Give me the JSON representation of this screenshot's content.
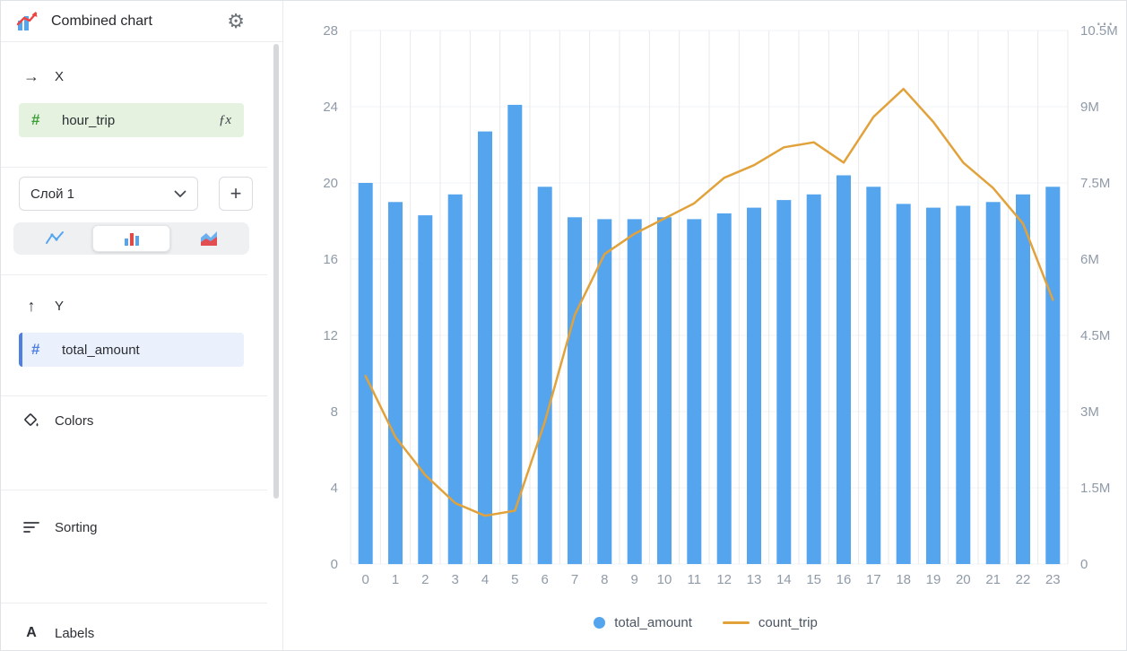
{
  "header": {
    "title": "Combined chart"
  },
  "icons": {
    "gear": "⚙",
    "x_arrow": "→",
    "y_arrow": "↑",
    "plus": "+",
    "menu_dots": "⋯",
    "labels": "A",
    "hash": "#",
    "formula": "ƒx"
  },
  "sidebar": {
    "x_section": {
      "label": "X",
      "field": "hour_trip"
    },
    "layer": {
      "selected": "Слой 1"
    },
    "y_section": {
      "label": "Y",
      "field": "total_amount"
    },
    "colors_label": "Colors",
    "sorting_label": "Sorting",
    "labels_label": "Labels"
  },
  "chart_data": {
    "type": "combined",
    "categories": [
      "0",
      "1",
      "2",
      "3",
      "4",
      "5",
      "6",
      "7",
      "8",
      "9",
      "10",
      "11",
      "12",
      "13",
      "14",
      "15",
      "16",
      "17",
      "18",
      "19",
      "20",
      "21",
      "22",
      "23"
    ],
    "series": [
      {
        "name": "total_amount",
        "type": "bar",
        "axis": "left",
        "color": "#55a4ee",
        "values": [
          20.0,
          19.0,
          18.3,
          19.4,
          22.7,
          24.1,
          19.8,
          18.2,
          18.1,
          18.1,
          18.2,
          18.1,
          18.4,
          18.7,
          19.1,
          19.4,
          20.4,
          19.8,
          18.9,
          18.7,
          18.8,
          19.0,
          19.4,
          19.8
        ]
      },
      {
        "name": "count_trip",
        "type": "line",
        "axis": "right",
        "color": "#e2a23b",
        "values": [
          3700000,
          2500000,
          1750000,
          1200000,
          950000,
          1050000,
          2800000,
          4900000,
          6100000,
          6500000,
          6800000,
          7100000,
          7600000,
          7850000,
          8200000,
          8300000,
          7900000,
          8800000,
          9350000,
          8700000,
          7900000,
          7400000,
          6700000,
          5200000
        ]
      }
    ],
    "left_axis": {
      "ticks": [
        0,
        4,
        8,
        12,
        16,
        20,
        24,
        28
      ],
      "max": 28
    },
    "right_axis": {
      "tick_labels": [
        "0",
        "1.5M",
        "3M",
        "4.5M",
        "6M",
        "7.5M",
        "9M",
        "10.5M"
      ],
      "tick_values": [
        0,
        1500000,
        3000000,
        4500000,
        6000000,
        7500000,
        9000000,
        10500000
      ],
      "max": 10500000
    },
    "legend": [
      {
        "label": "total_amount",
        "marker": "dot",
        "color": "#55a4ee"
      },
      {
        "label": "count_trip",
        "marker": "line",
        "color": "#e2a23b"
      }
    ],
    "grid": {
      "vertical": true,
      "horizontal": true
    },
    "legend_position": "bottom"
  }
}
